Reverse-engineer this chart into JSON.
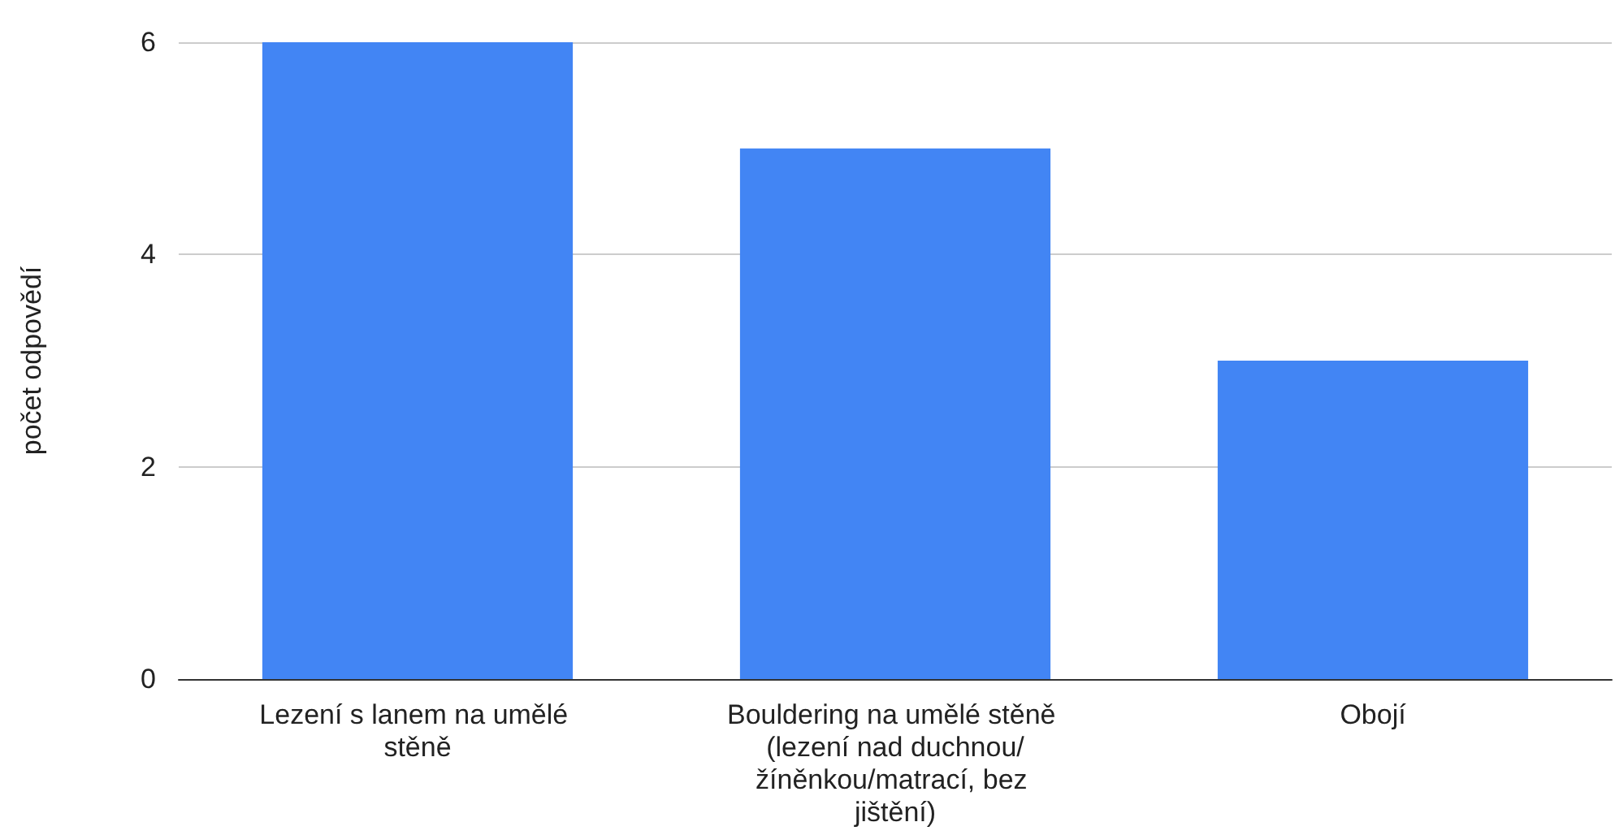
{
  "chart_data": {
    "type": "bar",
    "ylabel": "počet odpovědí",
    "categories": [
      "Lezení s lanem na umělé stěně",
      "Bouldering na umělé stěně (lezení nad duchnou/žíněnkou/matrací, bez jištění)",
      "Obojí"
    ],
    "values": [
      6,
      5,
      3
    ],
    "color": "#4285f4",
    "ylim": [
      0,
      6
    ],
    "yticks": [
      0,
      2,
      4,
      6
    ],
    "grid": "y"
  }
}
